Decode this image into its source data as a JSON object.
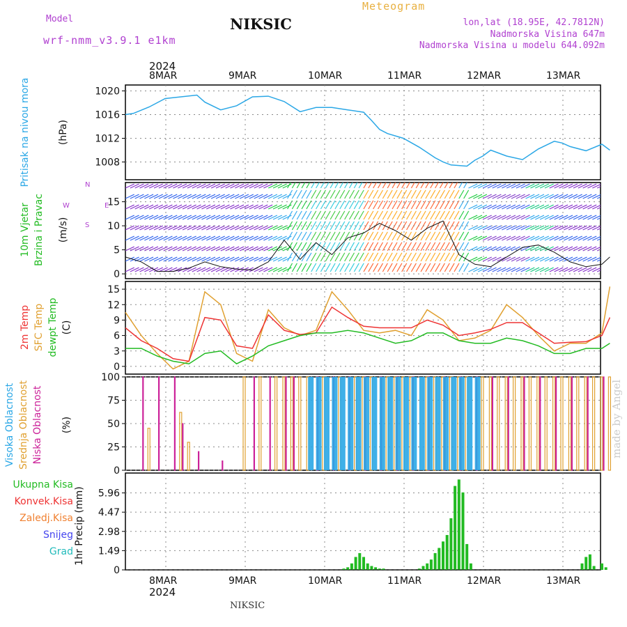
{
  "header": {
    "model_label": "Model",
    "model_name": "wrf-nmm_v3.9.1 e1km",
    "station": "NIKSIC",
    "meteogram": "Meteogram",
    "lonlat": "lon,lat (18.95E, 42.7812N)",
    "elevation": "Nadmorska Visina 647m",
    "model_elevation": "Nadmorska Visina u modelu 644.092m",
    "year": "2024",
    "footer_station": "NIKSIC",
    "watermark": "made by Angel"
  },
  "colors": {
    "pressure": "#2aa7e6",
    "wind_green": "#22bb22",
    "temp2m": "#ee3333",
    "sfc": "#e0a030",
    "dewpt": "#22bb22",
    "high_cloud": "#2aa7e6",
    "mid_cloud": "#e0a030",
    "low_cloud": "#cc2299",
    "total": "#22bb22",
    "convective": "#ee3333",
    "freezing": "#f08030",
    "snow": "#4444ee",
    "graupel": "#22bbbb"
  },
  "chart_data": [
    {
      "type": "line",
      "name": "pressure",
      "ylabel": [
        "Pritisak na nivou mora",
        "(hPa)"
      ],
      "x_ticks": [
        "8MAR",
        "9MAR",
        "10MAR",
        "11MAR",
        "12MAR",
        "13MAR"
      ],
      "ylim": [
        1005,
        1021
      ],
      "yticks": [
        1008,
        1012,
        1016,
        1020
      ],
      "grid": true,
      "x": [
        0,
        0.1,
        0.3,
        0.5,
        0.7,
        0.9,
        1.0,
        1.2,
        1.4,
        1.6,
        1.8,
        2.0,
        2.2,
        2.4,
        2.6,
        2.8,
        3.0,
        3.1,
        3.2,
        3.3,
        3.5,
        3.7,
        3.9,
        4.0,
        4.1,
        4.3,
        4.4,
        4.5,
        4.6,
        4.8,
        5.0,
        5.2,
        5.4,
        5.5,
        5.6,
        5.8,
        6.0,
        6.1
      ],
      "values": [
        1016.0,
        1016.2,
        1017.3,
        1018.7,
        1019.0,
        1019.3,
        1018.1,
        1016.8,
        1017.5,
        1019.0,
        1019.1,
        1018.2,
        1016.5,
        1017.2,
        1017.2,
        1016.8,
        1016.4,
        1015.0,
        1013.5,
        1012.8,
        1012.0,
        1010.5,
        1008.7,
        1008.0,
        1007.5,
        1007.3,
        1008.3,
        1009.0,
        1010.0,
        1009.0,
        1008.4,
        1010.2,
        1011.5,
        1011.2,
        1010.6,
        1009.9,
        1011.0,
        1010.0
      ]
    },
    {
      "type": "line",
      "name": "wind",
      "ylabel": [
        "10m Vjetar",
        "Brzina i Pravac",
        "(m/s)"
      ],
      "compass": {
        "w": "W",
        "e": "E",
        "n": "N",
        "s": "S"
      },
      "ylim": [
        -1,
        19
      ],
      "yticks": [
        0,
        5,
        10,
        15
      ],
      "grid": true,
      "x": [
        0,
        0.2,
        0.4,
        0.6,
        0.8,
        1.0,
        1.2,
        1.4,
        1.6,
        1.8,
        2.0,
        2.2,
        2.4,
        2.6,
        2.8,
        3.0,
        3.2,
        3.4,
        3.6,
        3.8,
        4.0,
        4.2,
        4.4,
        4.6,
        4.8,
        5.0,
        5.2,
        5.4,
        5.6,
        5.8,
        6.0,
        6.1
      ],
      "values": [
        3.5,
        2.5,
        0.5,
        0.5,
        1.2,
        2.5,
        1.5,
        1.0,
        0.8,
        2.5,
        7.0,
        3.0,
        6.5,
        4.0,
        7.5,
        8.5,
        10.5,
        9.0,
        7.0,
        9.5,
        11.0,
        4.0,
        2.0,
        1.5,
        3.5,
        5.5,
        6.0,
        4.5,
        2.5,
        1.5,
        2.0,
        3.5
      ]
    },
    {
      "type": "line",
      "name": "temperature",
      "ylabel": [
        "2m Temp",
        "SFC Temp",
        "dewpt Temp",
        "(C)"
      ],
      "ylim": [
        -1.5,
        16.5
      ],
      "yticks": [
        0,
        3,
        6,
        9,
        12,
        15
      ],
      "grid": true,
      "x": [
        0,
        0.2,
        0.4,
        0.6,
        0.8,
        1.0,
        1.2,
        1.4,
        1.6,
        1.8,
        2.0,
        2.2,
        2.4,
        2.6,
        2.8,
        3.0,
        3.2,
        3.4,
        3.6,
        3.8,
        4.0,
        4.2,
        4.4,
        4.6,
        4.8,
        5.0,
        5.2,
        5.4,
        5.6,
        5.8,
        6.0,
        6.1
      ],
      "series": [
        {
          "key": "sfc",
          "values": [
            10.5,
            6.0,
            2.5,
            -0.5,
            1.0,
            14.5,
            12.0,
            2.5,
            1.0,
            11.0,
            7.5,
            6.0,
            7.0,
            14.5,
            11.0,
            7.0,
            6.5,
            7.0,
            6.0,
            11.0,
            9.0,
            5.0,
            5.5,
            7.0,
            12.0,
            9.5,
            6.0,
            3.0,
            4.5,
            4.5,
            6.5,
            15.5
          ]
        },
        {
          "key": "temp2m",
          "values": [
            7.5,
            5.0,
            3.5,
            1.5,
            1.0,
            9.5,
            9.0,
            4.0,
            3.5,
            10.0,
            7.0,
            6.2,
            6.5,
            11.5,
            9.5,
            7.8,
            7.5,
            7.5,
            7.5,
            9.0,
            8.0,
            6.0,
            6.5,
            7.2,
            8.5,
            8.5,
            6.5,
            4.5,
            4.7,
            4.8,
            6.0,
            9.5
          ]
        },
        {
          "key": "dewpt",
          "values": [
            3.5,
            3.5,
            2.0,
            1.0,
            0.5,
            2.5,
            3.0,
            0.5,
            2.0,
            4.0,
            5.0,
            6.0,
            6.5,
            6.5,
            7.0,
            6.5,
            5.5,
            4.5,
            5.0,
            6.5,
            6.5,
            5.0,
            4.5,
            4.5,
            5.5,
            5.0,
            4.0,
            2.5,
            2.5,
            3.5,
            3.5,
            4.5
          ]
        }
      ]
    },
    {
      "type": "bar",
      "name": "clouds",
      "ylabel": [
        "Visoka Oblacnost",
        "Srednja Oblacnost",
        "Niska Oblacnost",
        "(%)"
      ],
      "ylim": [
        0,
        100
      ],
      "yticks": [
        0,
        25,
        50,
        75,
        100
      ],
      "grid": true,
      "note": "hourly cloud cover per layer; value = percentage",
      "high": [
        [
          1.0,
          0
        ],
        [
          2.2,
          0
        ],
        [
          2.3,
          100
        ],
        [
          2.4,
          100
        ],
        [
          2.5,
          100
        ],
        [
          2.6,
          100
        ],
        [
          2.7,
          100
        ],
        [
          2.8,
          100
        ],
        [
          2.9,
          100
        ],
        [
          3.0,
          100
        ],
        [
          3.1,
          100
        ],
        [
          3.2,
          100
        ],
        [
          3.3,
          100
        ],
        [
          3.4,
          100
        ],
        [
          3.5,
          100
        ],
        [
          3.6,
          100
        ],
        [
          3.7,
          100
        ],
        [
          3.8,
          100
        ],
        [
          3.9,
          100
        ],
        [
          4.0,
          100
        ],
        [
          4.1,
          100
        ],
        [
          4.2,
          100
        ],
        [
          4.3,
          100
        ],
        [
          4.4,
          100
        ]
      ],
      "mid": [
        [
          0.3,
          45
        ],
        [
          0.7,
          62
        ],
        [
          0.8,
          30
        ],
        [
          1.5,
          100
        ],
        [
          1.7,
          100
        ],
        [
          1.9,
          100
        ],
        [
          2.0,
          100
        ],
        [
          2.1,
          100
        ],
        [
          2.2,
          100
        ],
        [
          2.3,
          100
        ],
        [
          2.5,
          100
        ],
        [
          2.7,
          100
        ],
        [
          2.9,
          100
        ],
        [
          3.0,
          100
        ],
        [
          3.1,
          100
        ],
        [
          3.3,
          100
        ],
        [
          3.4,
          100
        ],
        [
          3.5,
          100
        ],
        [
          3.6,
          100
        ],
        [
          3.8,
          100
        ],
        [
          3.9,
          100
        ],
        [
          4.0,
          100
        ],
        [
          4.1,
          100
        ],
        [
          4.2,
          100
        ],
        [
          4.3,
          100
        ],
        [
          4.5,
          100
        ],
        [
          4.6,
          100
        ],
        [
          4.7,
          100
        ],
        [
          4.8,
          100
        ],
        [
          4.9,
          100
        ],
        [
          5.0,
          100
        ],
        [
          5.1,
          100
        ],
        [
          5.2,
          100
        ],
        [
          5.3,
          100
        ],
        [
          5.4,
          100
        ],
        [
          5.5,
          100
        ],
        [
          5.6,
          100
        ],
        [
          5.7,
          100
        ],
        [
          5.8,
          100
        ],
        [
          5.9,
          100
        ],
        [
          6.0,
          100
        ],
        [
          6.1,
          100
        ]
      ],
      "low": [
        [
          0.2,
          100
        ],
        [
          0.4,
          100
        ],
        [
          0.6,
          100
        ],
        [
          0.7,
          50
        ],
        [
          0.9,
          20
        ],
        [
          1.2,
          10
        ],
        [
          1.6,
          100
        ],
        [
          1.8,
          100
        ],
        [
          2.0,
          100
        ],
        [
          2.1,
          100
        ],
        [
          2.4,
          100
        ],
        [
          2.6,
          100
        ],
        [
          2.8,
          100
        ],
        [
          3.0,
          100
        ],
        [
          3.2,
          100
        ],
        [
          3.4,
          100
        ],
        [
          3.6,
          100
        ],
        [
          3.8,
          100
        ],
        [
          4.0,
          100
        ],
        [
          4.2,
          100
        ],
        [
          4.4,
          100
        ],
        [
          4.6,
          100
        ],
        [
          4.8,
          100
        ],
        [
          5.0,
          100
        ],
        [
          5.2,
          100
        ],
        [
          5.4,
          100
        ],
        [
          5.6,
          100
        ],
        [
          5.8,
          100
        ],
        [
          6.0,
          100
        ]
      ]
    },
    {
      "type": "bar",
      "name": "precip",
      "ylabel": [
        "1hr Precip",
        "(mm)"
      ],
      "legend": [
        "Ukupna Kisa",
        "Konvek.Kisa",
        "Zaledj.Kisa",
        "Snijeg",
        "Grad"
      ],
      "ylim": [
        0,
        7.5
      ],
      "yticks": [
        0,
        1.49,
        2.98,
        4.47,
        5.96
      ],
      "ytick_labels": [
        "0",
        "1.49",
        "2.98",
        "4.47",
        "5.96"
      ],
      "grid": true,
      "x": [
        2.75,
        2.8,
        2.85,
        2.9,
        2.95,
        3.0,
        3.05,
        3.1,
        3.15,
        3.2,
        3.25,
        3.7,
        3.75,
        3.8,
        3.85,
        3.9,
        3.95,
        4.0,
        4.05,
        4.1,
        4.15,
        4.2,
        4.25,
        4.3,
        4.35,
        5.75,
        5.8,
        5.85,
        5.9,
        6.0,
        6.05
      ],
      "values": [
        0.1,
        0.2,
        0.5,
        1.0,
        1.3,
        1.0,
        0.5,
        0.3,
        0.2,
        0.1,
        0.1,
        0.1,
        0.3,
        0.5,
        0.8,
        1.3,
        1.7,
        2.2,
        2.7,
        4.0,
        6.5,
        7.0,
        6.0,
        2.0,
        0.5,
        0.5,
        1.0,
        1.2,
        0.3,
        0.5,
        0.2
      ]
    }
  ]
}
